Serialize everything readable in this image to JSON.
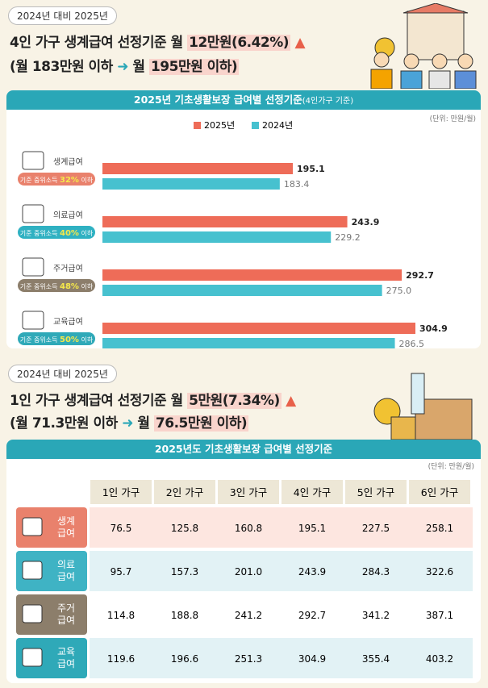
{
  "header1": {
    "badge": "2024년 대비 2025년",
    "line1": "4인 가구 생계급여 선정기준 월",
    "highlight": "12만원(6.42%)",
    "from": "(월 183만원 이하",
    "to_prefix": "월",
    "to_highlight": "195만원 이하)"
  },
  "chart_data": {
    "type": "hbar",
    "title": "2025년 기초생활보장 급여별 선정기준",
    "title_note": "(4인가구 기준)",
    "unit": "(단위: 만원/월)",
    "categories": [
      "생계급여",
      "의료급여",
      "주거급여",
      "교육급여"
    ],
    "sublabels": [
      [
        "기준 중위소득",
        "32%",
        "이하"
      ],
      [
        "기준 중위소득",
        "40%",
        "이하"
      ],
      [
        "기준 중위소득",
        "48%",
        "이하"
      ],
      [
        "기준 중위소득",
        "50%",
        "이하"
      ]
    ],
    "series": [
      {
        "name": "2025년",
        "color": "#ee6c58",
        "values": [
          195.1,
          243.9,
          292.7,
          304.9
        ],
        "value_labels": [
          "195.1",
          "243.9",
          "292.7",
          "304.9"
        ]
      },
      {
        "name": "2024년",
        "color": "#47c1cf",
        "values": [
          183.4,
          229.2,
          275.0,
          286.5
        ],
        "value_labels": [
          "183.4",
          "229.2",
          "275.0",
          "286.5"
        ]
      }
    ]
  },
  "header2": {
    "badge": "2024년 대비 2025년",
    "line1": "1인 가구 생계급여 선정기준 월",
    "highlight": "5만원(7.34%)",
    "from": "(월 71.3만원 이하",
    "to_prefix": "월",
    "to_highlight": "76.5만원 이하)"
  },
  "table": {
    "title": "2025년도 기초생활보장 급여별 선정기준",
    "unit": "(단위: 만원/월)",
    "columns": [
      "1인 가구",
      "2인 가구",
      "3인 가구",
      "4인 가구",
      "5인 가구",
      "6인 가구"
    ],
    "rows": [
      {
        "label": [
          "생계",
          "급여"
        ],
        "values": [
          "76.5",
          "125.8",
          "160.8",
          "195.1",
          "227.5",
          "258.1"
        ]
      },
      {
        "label": [
          "의료",
          "급여"
        ],
        "values": [
          "95.7",
          "157.3",
          "201.0",
          "243.9",
          "284.3",
          "322.6"
        ]
      },
      {
        "label": [
          "주거",
          "급여"
        ],
        "values": [
          "114.8",
          "188.8",
          "241.2",
          "292.7",
          "341.2",
          "387.1"
        ]
      },
      {
        "label": [
          "교육",
          "급여"
        ],
        "values": [
          "119.6",
          "196.6",
          "251.3",
          "304.9",
          "355.4",
          "403.2"
        ]
      }
    ]
  }
}
